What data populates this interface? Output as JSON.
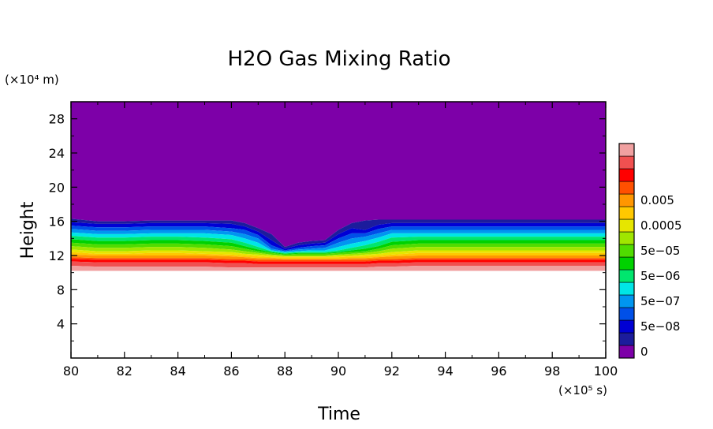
{
  "chart_data": {
    "type": "heatmap",
    "subtype": "filled-contour",
    "title": "H2O Gas Mixing Ratio",
    "xlabel": "Time",
    "ylabel": "Height",
    "x_unit": "(×10⁵ s)",
    "y_unit": "(×10⁴ m)",
    "xlim": [
      80,
      100
    ],
    "ylim": [
      0,
      30
    ],
    "x_ticks": [
      "80",
      "82",
      "84",
      "86",
      "88",
      "90",
      "92",
      "94",
      "96",
      "98",
      "100"
    ],
    "y_ticks": [
      "4",
      "8",
      "12",
      "16",
      "20",
      "24",
      "28"
    ],
    "colorbar": {
      "labels": [
        "0",
        "5e−08",
        "5e−07",
        "5e−06",
        "5e−05",
        "0.0005",
        "0.005"
      ],
      "colors": [
        "#7d00a8",
        "#1c1c9c",
        "#0000d4",
        "#0050e8",
        "#0096f0",
        "#00e6e6",
        "#00e66e",
        "#00d200",
        "#50dc00",
        "#a0e600",
        "#e6e600",
        "#ffc800",
        "#ff9600",
        "#ff5000",
        "#ff0000",
        "#f05050",
        "#f0a0a0"
      ]
    },
    "contour_x": [
      80,
      81,
      82,
      83,
      84,
      85,
      86,
      86.5,
      87,
      87.5,
      88,
      88.5,
      89,
      89.5,
      90,
      90.5,
      91,
      91.5,
      92,
      93,
      94,
      95,
      96,
      97,
      98,
      99,
      100
    ],
    "boundaries": [
      {
        "level": 0,
        "heights": [
          16.3,
          16.0,
          16.0,
          16.1,
          16.1,
          16.1,
          16.1,
          15.8,
          15.2,
          14.5,
          13.0,
          13.5,
          13.7,
          13.8,
          15.0,
          15.8,
          16.1,
          16.2,
          16.2,
          16.2,
          16.2,
          16.2,
          16.2,
          16.2,
          16.2,
          16.2,
          16.2
        ]
      },
      {
        "level": 1,
        "heights": [
          15.9,
          15.7,
          15.7,
          15.8,
          15.8,
          15.8,
          15.7,
          15.4,
          14.8,
          13.8,
          12.8,
          13.2,
          13.4,
          13.5,
          14.5,
          15.2,
          15.0,
          15.6,
          15.8,
          15.8,
          15.8,
          15.8,
          15.8,
          15.8,
          15.8,
          15.8,
          15.8
        ]
      },
      {
        "level": 2,
        "heights": [
          15.5,
          15.3,
          15.3,
          15.4,
          15.4,
          15.4,
          15.2,
          15.0,
          14.4,
          13.2,
          12.6,
          12.9,
          13.1,
          13.2,
          14.0,
          14.6,
          14.6,
          15.1,
          15.4,
          15.4,
          15.4,
          15.4,
          15.4,
          15.4,
          15.4,
          15.4,
          15.4
        ]
      },
      {
        "level": 3,
        "heights": [
          15.1,
          14.9,
          14.9,
          15.0,
          15.0,
          15.0,
          14.8,
          14.5,
          14.0,
          12.8,
          12.5,
          12.7,
          12.8,
          12.9,
          13.5,
          14.0,
          14.2,
          14.6,
          15.0,
          15.0,
          15.0,
          15.0,
          15.0,
          15.0,
          15.0,
          15.0,
          15.0
        ]
      },
      {
        "level": 4,
        "heights": [
          14.7,
          14.5,
          14.5,
          14.6,
          14.6,
          14.6,
          14.4,
          14.0,
          13.5,
          12.6,
          12.4,
          12.5,
          12.6,
          12.6,
          13.0,
          13.4,
          13.7,
          14.1,
          14.6,
          14.6,
          14.6,
          14.6,
          14.6,
          14.6,
          14.6,
          14.6,
          14.6
        ]
      },
      {
        "level": 5,
        "heights": [
          14.3,
          14.1,
          14.1,
          14.2,
          14.2,
          14.1,
          13.9,
          13.5,
          13.0,
          12.5,
          12.3,
          12.4,
          12.4,
          12.4,
          12.6,
          12.9,
          13.2,
          13.6,
          14.1,
          14.2,
          14.2,
          14.2,
          14.2,
          14.2,
          14.2,
          14.2,
          14.2
        ]
      },
      {
        "level": 6,
        "heights": [
          13.9,
          13.7,
          13.7,
          13.8,
          13.8,
          13.7,
          13.5,
          13.1,
          12.7,
          12.4,
          12.2,
          12.3,
          12.3,
          12.3,
          12.4,
          12.6,
          12.8,
          13.1,
          13.6,
          13.8,
          13.8,
          13.8,
          13.8,
          13.8,
          13.8,
          13.8,
          13.8
        ]
      },
      {
        "level": 7,
        "heights": [
          13.5,
          13.3,
          13.3,
          13.4,
          13.4,
          13.3,
          13.1,
          12.8,
          12.5,
          12.3,
          12.1,
          12.2,
          12.2,
          12.2,
          12.3,
          12.4,
          12.5,
          12.8,
          13.2,
          13.4,
          13.4,
          13.4,
          13.4,
          13.4,
          13.4,
          13.4,
          13.4
        ]
      },
      {
        "level": 8,
        "heights": [
          13.1,
          12.9,
          12.9,
          13.0,
          13.0,
          12.9,
          12.7,
          12.5,
          12.3,
          12.1,
          12.0,
          12.0,
          12.0,
          12.0,
          12.1,
          12.2,
          12.3,
          12.5,
          12.8,
          13.0,
          13.0,
          13.0,
          13.0,
          13.0,
          13.0,
          13.0,
          13.0
        ]
      },
      {
        "level": 9,
        "heights": [
          12.7,
          12.5,
          12.5,
          12.6,
          12.6,
          12.5,
          12.4,
          12.2,
          12.1,
          12.0,
          11.9,
          11.9,
          11.9,
          11.9,
          12.0,
          12.0,
          12.1,
          12.2,
          12.4,
          12.6,
          12.6,
          12.6,
          12.6,
          12.6,
          12.6,
          12.6,
          12.6
        ]
      },
      {
        "level": 10,
        "heights": [
          12.4,
          12.2,
          12.2,
          12.3,
          12.3,
          12.2,
          12.1,
          12.0,
          11.9,
          11.8,
          11.8,
          11.8,
          11.8,
          11.8,
          11.8,
          11.9,
          11.9,
          12.0,
          12.1,
          12.3,
          12.3,
          12.3,
          12.3,
          12.3,
          12.3,
          12.3,
          12.3
        ]
      },
      {
        "level": 11,
        "heights": [
          12.1,
          12.0,
          12.0,
          12.0,
          12.0,
          12.0,
          11.9,
          11.8,
          11.7,
          11.7,
          11.6,
          11.6,
          11.6,
          11.6,
          11.6,
          11.7,
          11.7,
          11.8,
          11.9,
          12.0,
          12.0,
          12.0,
          12.0,
          12.0,
          12.0,
          12.0,
          12.0
        ]
      },
      {
        "level": 12,
        "heights": [
          11.8,
          11.7,
          11.7,
          11.7,
          11.7,
          11.7,
          11.6,
          11.6,
          11.5,
          11.5,
          11.5,
          11.5,
          11.5,
          11.5,
          11.5,
          11.5,
          11.5,
          11.6,
          11.6,
          11.7,
          11.7,
          11.7,
          11.7,
          11.7,
          11.7,
          11.7,
          11.7
        ]
      },
      {
        "level": 13,
        "heights": [
          11.6,
          11.5,
          11.5,
          11.5,
          11.5,
          11.5,
          11.4,
          11.4,
          11.3,
          11.3,
          11.3,
          11.3,
          11.3,
          11.3,
          11.3,
          11.3,
          11.3,
          11.4,
          11.4,
          11.5,
          11.5,
          11.5,
          11.5,
          11.5,
          11.5,
          11.5,
          11.5
        ]
      },
      {
        "level": 14,
        "heights": [
          11.3,
          11.2,
          11.2,
          11.2,
          11.2,
          11.2,
          11.1,
          11.1,
          11.0,
          11.0,
          11.0,
          11.0,
          11.0,
          11.0,
          11.0,
          11.0,
          11.0,
          11.1,
          11.1,
          11.2,
          11.2,
          11.2,
          11.2,
          11.2,
          11.2,
          11.2,
          11.2
        ]
      },
      {
        "level": 15,
        "heights": [
          10.8,
          10.7,
          10.7,
          10.7,
          10.7,
          10.7,
          10.6,
          10.6,
          10.6,
          10.6,
          10.6,
          10.6,
          10.6,
          10.6,
          10.6,
          10.6,
          10.6,
          10.7,
          10.7,
          10.8,
          10.8,
          10.8,
          10.8,
          10.8,
          10.8,
          10.8,
          10.8
        ]
      },
      {
        "level": 16,
        "heights": [
          10.2,
          10.2,
          10.2,
          10.2,
          10.2,
          10.2,
          10.2,
          10.2,
          10.2,
          10.2,
          10.2,
          10.2,
          10.2,
          10.2,
          10.2,
          10.2,
          10.2,
          10.2,
          10.2,
          10.2,
          10.2,
          10.2,
          10.2,
          10.2,
          10.2,
          10.2,
          10.2
        ]
      }
    ]
  }
}
